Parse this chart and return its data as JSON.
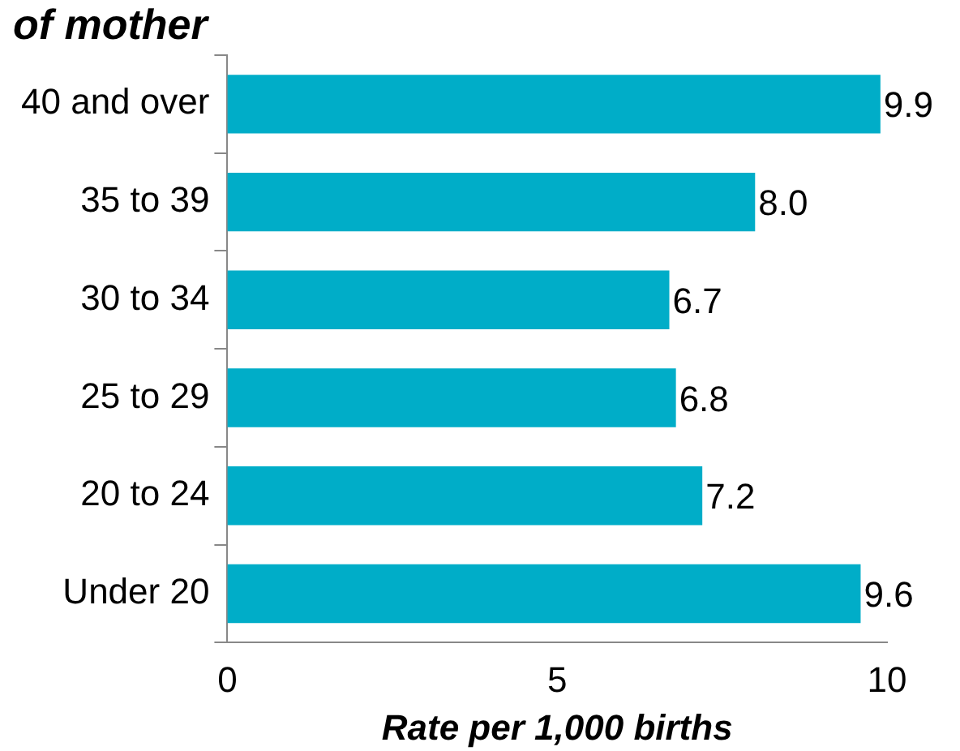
{
  "chart_data": {
    "type": "bar",
    "orientation": "horizontal",
    "title": "of mother",
    "xlabel": "Rate per 1,000 births",
    "categories": [
      "40 and over",
      "35 to 39",
      "30 to 34",
      "25 to 29",
      "20 to 24",
      "Under 20"
    ],
    "values": [
      9.9,
      8.0,
      6.7,
      6.8,
      7.2,
      9.6
    ],
    "value_labels": [
      "9.9",
      "8.0",
      "6.7",
      "6.8",
      "7.2",
      "9.6"
    ],
    "color": "#00adc8",
    "xlim": [
      0,
      10
    ],
    "xticks": [
      0,
      5,
      10
    ],
    "grid": false,
    "legend": false,
    "data_labels": true
  }
}
